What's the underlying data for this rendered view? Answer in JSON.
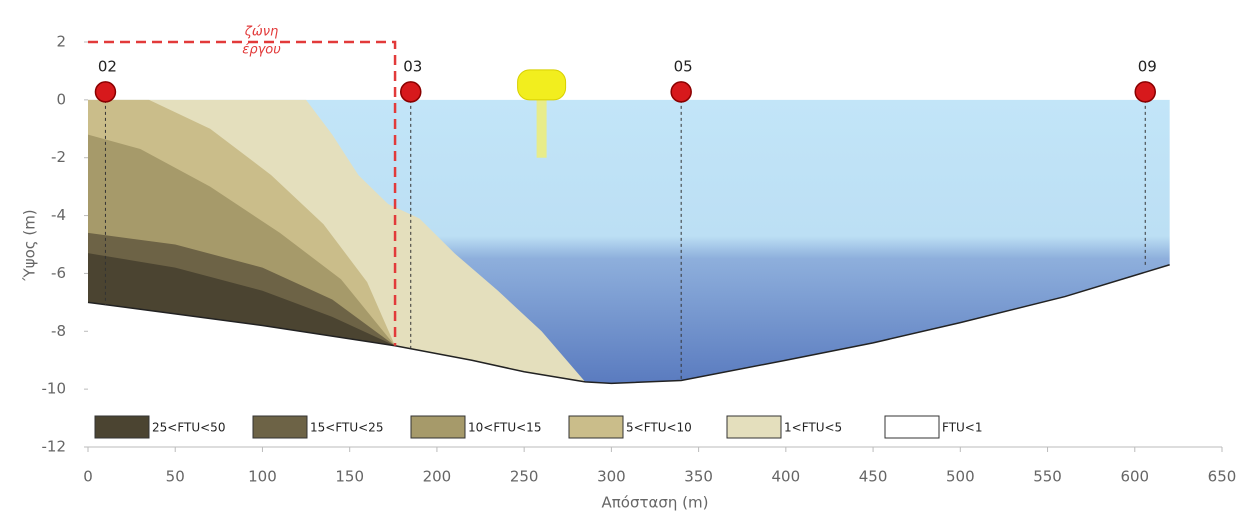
{
  "chart_data": {
    "type": "section",
    "xlabel": "Απόσταση (m)",
    "ylabel": "Ύψος (m)",
    "xlim": [
      0,
      650
    ],
    "ylim": [
      -12,
      2
    ],
    "xticks": [
      0,
      50,
      100,
      150,
      200,
      250,
      300,
      350,
      400,
      450,
      500,
      550,
      600,
      650
    ],
    "yticks": [
      -12,
      -10,
      -8,
      -6,
      -4,
      -2,
      0,
      2
    ],
    "water_colors": [
      "#c2e5f8",
      "#bcdff4",
      "#8eafdc",
      "#5a7bbf"
    ],
    "series": [
      {
        "name": "25<FTU<50",
        "color": "#4b4431",
        "x": [
          0,
          50,
          100,
          140,
          176,
          100,
          50,
          0
        ],
        "y": [
          -5.3,
          -5.8,
          -6.6,
          -7.5,
          -8.5,
          -7.8,
          -7.4,
          -7
        ]
      },
      {
        "name": "15<FTU<25",
        "color": "#6d6346",
        "x": [
          0,
          50,
          100,
          140,
          176,
          100,
          50,
          0
        ],
        "y": [
          -4.6,
          -5,
          -5.8,
          -6.9,
          -8.5,
          -7.8,
          -7.4,
          -7
        ]
      },
      {
        "name": "10<FTU<15",
        "color": "#a69a6a",
        "x": [
          0,
          30,
          70,
          110,
          145,
          176,
          100,
          50,
          0
        ],
        "y": [
          -1.2,
          -1.7,
          -3,
          -4.6,
          -6.2,
          -8.5,
          -7.8,
          -7.4,
          -7
        ]
      },
      {
        "name": "5<FTU<10",
        "color": "#cabd8a",
        "x": [
          0,
          35,
          70,
          105,
          135,
          160,
          176,
          100,
          50,
          0
        ],
        "y": [
          0,
          0,
          -1,
          -2.6,
          -4.3,
          -6.3,
          -8.5,
          -7.8,
          -7.4,
          -7
        ]
      },
      {
        "name": "1<FTU<5",
        "color": "#e4dfbd",
        "x": [
          0,
          125,
          140,
          155,
          172,
          190,
          210,
          235,
          260,
          285,
          250,
          220,
          176,
          100,
          50,
          0
        ],
        "y": [
          0,
          0,
          -1.2,
          -2.6,
          -3.6,
          -4.1,
          -5.3,
          -6.6,
          -8,
          -9.75,
          -9.4,
          -9,
          -8.5,
          -7.8,
          -7.4,
          -7
        ]
      },
      {
        "name": "FTU<1",
        "color": "#ffffff",
        "x": [
          0,
          620,
          620,
          560,
          500,
          450,
          400,
          340,
          300,
          285,
          250,
          220,
          176,
          100,
          50,
          0
        ],
        "y": [
          0,
          0,
          -5.7,
          -6.8,
          -7.7,
          -8.4,
          -9,
          -9.7,
          -9.8,
          -9.75,
          -9.4,
          -9,
          -8.5,
          -7.8,
          -7.4,
          -7
        ]
      }
    ],
    "bed": {
      "x": [
        0,
        50,
        100,
        176,
        220,
        250,
        285,
        300,
        340,
        400,
        450,
        500,
        560,
        620
      ],
      "y": [
        -7,
        -7.4,
        -7.8,
        -8.5,
        -9,
        -9.4,
        -9.75,
        -9.8,
        -9.7,
        -9,
        -8.4,
        -7.7,
        -6.8,
        -5.7
      ]
    },
    "stations": [
      {
        "name": "02",
        "x": 10,
        "y": 0,
        "depth": -7.1
      },
      {
        "name": "03",
        "x": 185,
        "y": 0,
        "depth": -8.6
      },
      {
        "name": "05",
        "x": 340,
        "y": 0,
        "depth": -9.7
      },
      {
        "name": "09",
        "x": 606,
        "y": 0,
        "depth": -5.8
      }
    ],
    "project_zone": {
      "label": [
        "ζώνη",
        "έργου"
      ],
      "x": [
        0,
        176
      ],
      "y": [
        -8.5,
        2
      ]
    }
  }
}
